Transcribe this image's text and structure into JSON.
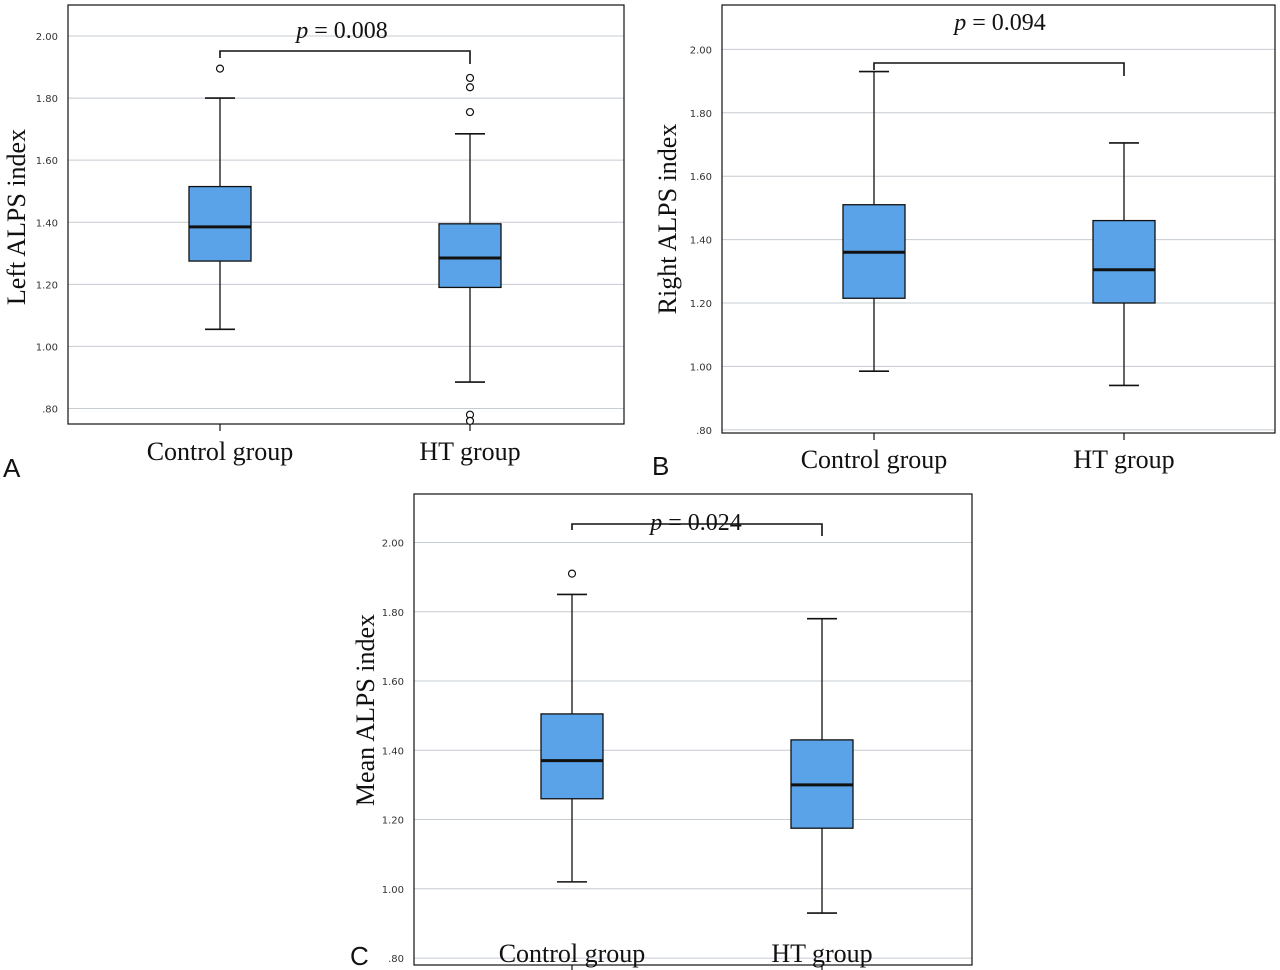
{
  "colors": {
    "box_fill": "#5ba3e8",
    "stroke": "#111111",
    "grid": "#c5ccd2"
  },
  "chart_data": [
    {
      "type": "box",
      "panel_label": "A",
      "ylabel": "Left ALPS index",
      "ylim": [
        0.75,
        2.1
      ],
      "yticks": [
        0.8,
        1.0,
        1.2,
        1.4,
        1.6,
        1.8,
        2.0
      ],
      "ytick_labels": [
        ".80",
        "1.00",
        "1.20",
        "1.40",
        "1.60",
        "1.80",
        "2.00"
      ],
      "grid": true,
      "categories": [
        "Control group",
        "HT group"
      ],
      "boxes": [
        {
          "whisker_low": 1.055,
          "q1": 1.275,
          "median": 1.385,
          "q3": 1.515,
          "whisker_high": 1.8,
          "outliers": [
            1.895
          ]
        },
        {
          "whisker_low": 0.885,
          "q1": 1.19,
          "median": 1.285,
          "q3": 1.395,
          "whisker_high": 1.685,
          "outliers": [
            1.865,
            1.835,
            1.755,
            0.78,
            0.76
          ]
        }
      ],
      "annotation": {
        "p_label": "p",
        "p_value": " = 0.008"
      }
    },
    {
      "type": "box",
      "panel_label": "B",
      "ylabel": "Right ALPS index",
      "ylim": [
        0.79,
        2.14
      ],
      "yticks": [
        0.8,
        1.0,
        1.2,
        1.4,
        1.6,
        1.8,
        2.0
      ],
      "ytick_labels": [
        ".80",
        "1.00",
        "1.20",
        "1.40",
        "1.60",
        "1.80",
        "2.00"
      ],
      "grid": true,
      "categories": [
        "Control group",
        "HT group"
      ],
      "boxes": [
        {
          "whisker_low": 0.985,
          "q1": 1.215,
          "median": 1.36,
          "q3": 1.51,
          "whisker_high": 1.93,
          "outliers": []
        },
        {
          "whisker_low": 0.94,
          "q1": 1.2,
          "median": 1.305,
          "q3": 1.46,
          "whisker_high": 1.705,
          "outliers": []
        }
      ],
      "annotation": {
        "p_label": "p",
        "p_value": " = 0.094"
      }
    },
    {
      "type": "box",
      "panel_label": "C",
      "ylabel": "Mean ALPS index",
      "ylim": [
        0.78,
        2.14
      ],
      "yticks": [
        0.8,
        1.0,
        1.2,
        1.4,
        1.6,
        1.8,
        2.0
      ],
      "ytick_labels": [
        ".80",
        "1.00",
        "1.20",
        "1.40",
        "1.60",
        "1.80",
        "2.00"
      ],
      "grid": true,
      "categories": [
        "Control group",
        "HT group"
      ],
      "boxes": [
        {
          "whisker_low": 1.02,
          "q1": 1.26,
          "median": 1.37,
          "q3": 1.505,
          "whisker_high": 1.85,
          "outliers": [
            1.91
          ]
        },
        {
          "whisker_low": 0.93,
          "q1": 1.175,
          "median": 1.3,
          "q3": 1.43,
          "whisker_high": 1.78,
          "outliers": []
        }
      ],
      "annotation": {
        "p_label": "p",
        "p_value": " = 0.024"
      }
    }
  ]
}
